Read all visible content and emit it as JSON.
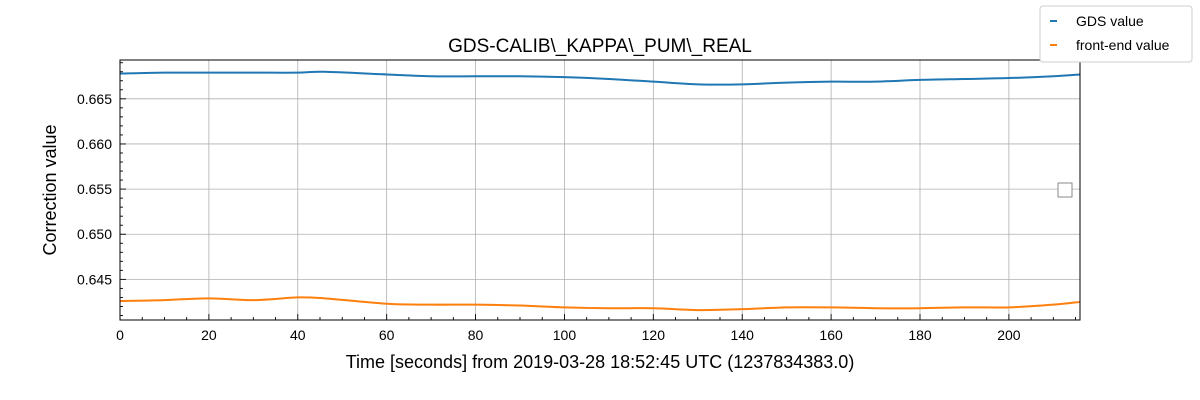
{
  "chart_data": {
    "type": "line",
    "title": "GDS-CALIB\\_KAPPA\\_PUM\\_REAL",
    "xlabel": "Time [seconds] from 2019-03-28 18:52:45 UTC (1237834383.0)",
    "ylabel": "Correction value",
    "xlim": [
      0,
      216
    ],
    "ylim": [
      0.6405,
      0.6693
    ],
    "xticks": [
      0,
      20,
      40,
      60,
      80,
      100,
      120,
      140,
      160,
      180,
      200
    ],
    "xtick_labels": [
      "0",
      "20",
      "40",
      "60",
      "80",
      "100",
      "120",
      "140",
      "160",
      "180",
      "200"
    ],
    "yticks": [
      0.645,
      0.65,
      0.655,
      0.66,
      0.665
    ],
    "ytick_labels": [
      "0.645",
      "0.650",
      "0.655",
      "0.660",
      "0.665"
    ],
    "grid": true,
    "legend_placement": "top-right",
    "series": [
      {
        "name": "GDS value",
        "color": "#1f77b4",
        "x": [
          0,
          10,
          20,
          30,
          40,
          46,
          60,
          70,
          80,
          90,
          100,
          110,
          120,
          130,
          140,
          150,
          160,
          170,
          180,
          190,
          200,
          210,
          216
        ],
        "y": [
          0.6678,
          0.6679,
          0.6679,
          0.6679,
          0.6679,
          0.668,
          0.6677,
          0.6675,
          0.6675,
          0.6675,
          0.6674,
          0.6672,
          0.6669,
          0.6666,
          0.6666,
          0.6668,
          0.6669,
          0.6669,
          0.6671,
          0.6672,
          0.6673,
          0.6675,
          0.6677
        ]
      },
      {
        "name": "front-end value",
        "color": "#ff7f0e",
        "x": [
          0,
          10,
          20,
          30,
          40,
          46,
          60,
          70,
          80,
          90,
          100,
          110,
          120,
          130,
          140,
          150,
          160,
          170,
          180,
          190,
          200,
          210,
          216
        ],
        "y": [
          0.6426,
          0.6427,
          0.6429,
          0.6427,
          0.643,
          0.6429,
          0.6423,
          0.6422,
          0.6422,
          0.6421,
          0.6419,
          0.6418,
          0.6418,
          0.6416,
          0.6417,
          0.6419,
          0.6419,
          0.6418,
          0.6418,
          0.6419,
          0.6419,
          0.6422,
          0.6425
        ]
      }
    ]
  }
}
